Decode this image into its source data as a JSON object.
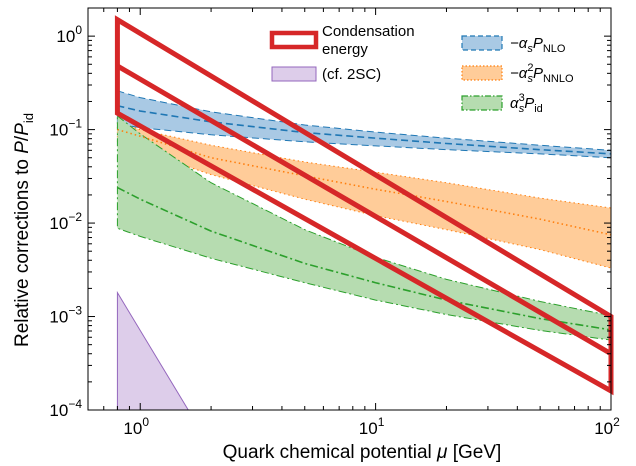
{
  "chart_data": {
    "type": "area",
    "xlabel": "Quark chemical potential μ [GeV]",
    "xlabel_parts": {
      "main": "Quark chemical potential ",
      "symbol": "μ",
      "unit": " [GeV]"
    },
    "ylabel": "Relative corrections to P/P_id",
    "ylabel_parts": {
      "main": "Relative corrections to ",
      "P": "P",
      "slash": "/",
      "Pid": "P",
      "id": "id"
    },
    "xscale": "log",
    "yscale": "log",
    "xlim": [
      0.6,
      100
    ],
    "ylim": [
      0.0001,
      2
    ],
    "xticks": [
      {
        "value": 1,
        "base": "10",
        "exp": "0"
      },
      {
        "value": 10,
        "base": "10",
        "exp": "1"
      },
      {
        "value": 100,
        "base": "10",
        "exp": "2"
      }
    ],
    "yticks": [
      {
        "value": 0.0001,
        "base": "10",
        "exp": "−4"
      },
      {
        "value": 0.001,
        "base": "10",
        "exp": "−3"
      },
      {
        "value": 0.01,
        "base": "10",
        "exp": "−2"
      },
      {
        "value": 0.1,
        "base": "10",
        "exp": "−1"
      },
      {
        "value": 1,
        "base": "10",
        "exp": "0"
      }
    ],
    "grid": false,
    "legend_left": {
      "placement": "top-center",
      "entries": [
        {
          "key": "condensation",
          "line1": "Condensation",
          "line2": "energy",
          "color": "#d62728"
        },
        {
          "key": "cf2sc",
          "label": "(cf. 2SC)",
          "color": "#9467bd"
        }
      ]
    },
    "legend_right": {
      "placement": "top-right",
      "entries": [
        {
          "key": "nlo",
          "prefix": "−α",
          "sub1": "s",
          "sup": "",
          "P": "P",
          "sub2": "NLO",
          "color": "#1f77b4"
        },
        {
          "key": "nnlo",
          "prefix": "−α",
          "sub1": "s",
          "sup": "2",
          "P": "P",
          "sub2": "NNLO",
          "color": "#ff7f0e"
        },
        {
          "key": "n3lo",
          "prefix": "α",
          "sub1": "s",
          "sup": "3",
          "P": "P",
          "sub2": "id",
          "color": "#2ca02c"
        }
      ]
    },
    "series": [
      {
        "key": "nlo",
        "color": "#1f77b4",
        "fill": "#a9c9e4",
        "style": "dashed",
        "x": [
          0.8,
          1,
          2,
          5,
          10,
          20,
          50,
          100
        ],
        "central": [
          0.18,
          0.158,
          0.121,
          0.093,
          0.081,
          0.071,
          0.061,
          0.055
        ],
        "upper": [
          0.26,
          0.22,
          0.155,
          0.112,
          0.094,
          0.081,
          0.068,
          0.06
        ],
        "lower": [
          0.115,
          0.105,
          0.088,
          0.074,
          0.067,
          0.061,
          0.055,
          0.05
        ]
      },
      {
        "key": "nnlo",
        "color": "#ff7f0e",
        "fill": "#ffcc99",
        "style": "dotted",
        "x": [
          0.8,
          1,
          2,
          5,
          10,
          20,
          50,
          100
        ],
        "central": [
          0.1,
          0.085,
          0.05,
          0.032,
          0.023,
          0.017,
          0.011,
          0.0075
        ],
        "upper": [
          0.12,
          0.1,
          0.068,
          0.045,
          0.035,
          0.027,
          0.0185,
          0.0145
        ],
        "lower": [
          0.075,
          0.06,
          0.033,
          0.018,
          0.012,
          0.0085,
          0.0052,
          0.0033
        ]
      },
      {
        "key": "n3lo",
        "color": "#2ca02c",
        "fill": "#b6dcb0",
        "style": "dashdot",
        "x": [
          0.8,
          1,
          2,
          5,
          10,
          20,
          50,
          100
        ],
        "central": [
          0.024,
          0.018,
          0.0082,
          0.0037,
          0.0023,
          0.0015,
          0.00095,
          0.00072
        ],
        "upper": [
          0.14,
          0.09,
          0.027,
          0.0085,
          0.0043,
          0.0025,
          0.00145,
          0.00102
        ],
        "lower": [
          0.0088,
          0.0072,
          0.0042,
          0.0023,
          0.0015,
          0.00105,
          0.00071,
          0.00056
        ]
      },
      {
        "key": "condensation",
        "color": "#d62728",
        "style": "outline",
        "polygon_outer": [
          [
            0.8,
            1.5
          ],
          [
            100,
            0.001
          ],
          [
            100,
            0.00016
          ],
          [
            0.8,
            0.15
          ]
        ],
        "inner_line": [
          [
            0.8,
            0.48
          ],
          [
            100,
            0.0004
          ]
        ]
      },
      {
        "key": "cf2sc",
        "color": "#9467bd",
        "fill": "#ddcdea",
        "style": "filled",
        "polygon": [
          [
            0.8,
            0.0018
          ],
          [
            1.6,
            0.0001
          ],
          [
            0.8,
            0.0001
          ]
        ]
      }
    ]
  }
}
